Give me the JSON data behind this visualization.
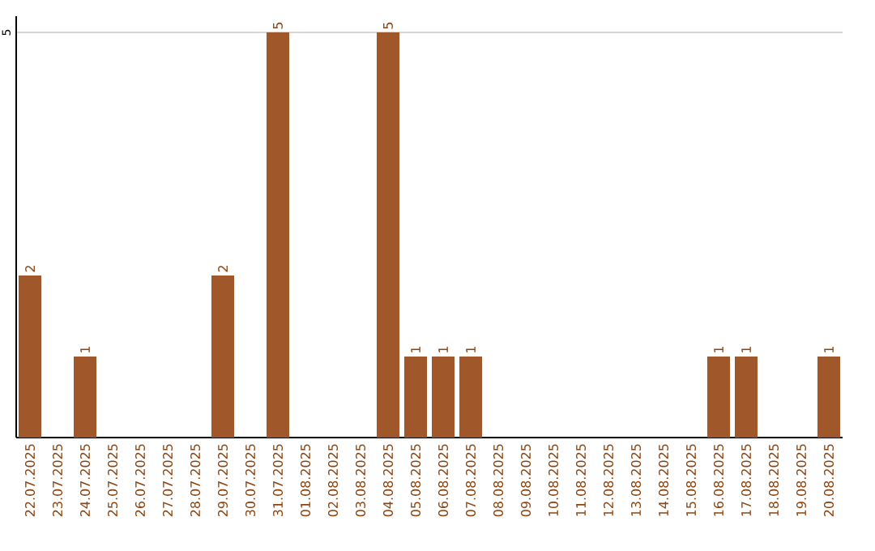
{
  "chart_data": {
    "type": "bar",
    "categories": [
      "22.07.2025",
      "23.07.2025",
      "24.07.2025",
      "25.07.2025",
      "26.07.2025",
      "27.07.2025",
      "28.07.2025",
      "29.07.2025",
      "30.07.2025",
      "31.07.2025",
      "01.08.2025",
      "02.08.2025",
      "03.08.2025",
      "04.08.2025",
      "05.08.2025",
      "06.08.2025",
      "07.08.2025",
      "08.08.2025",
      "09.08.2025",
      "10.08.2025",
      "11.08.2025",
      "12.08.2025",
      "13.08.2025",
      "14.08.2025",
      "15.08.2025",
      "16.08.2025",
      "17.08.2025",
      "18.08.2025",
      "19.08.2025",
      "20.08.2025"
    ],
    "values": [
      2,
      0,
      1,
      0,
      0,
      0,
      0,
      2,
      0,
      5,
      0,
      0,
      0,
      5,
      1,
      1,
      1,
      0,
      0,
      0,
      0,
      0,
      0,
      0,
      0,
      1,
      1,
      0,
      0,
      1
    ],
    "value_labels": [
      "2",
      null,
      "1",
      null,
      null,
      null,
      null,
      "2",
      null,
      "5",
      null,
      null,
      null,
      "5",
      "1",
      "1",
      "1",
      null,
      null,
      null,
      null,
      null,
      null,
      null,
      null,
      "1",
      "1",
      null,
      null,
      "1"
    ],
    "color": "#a0572a",
    "ylim": [
      0,
      5.2
    ],
    "yticks": [
      5
    ],
    "grid": "y"
  }
}
